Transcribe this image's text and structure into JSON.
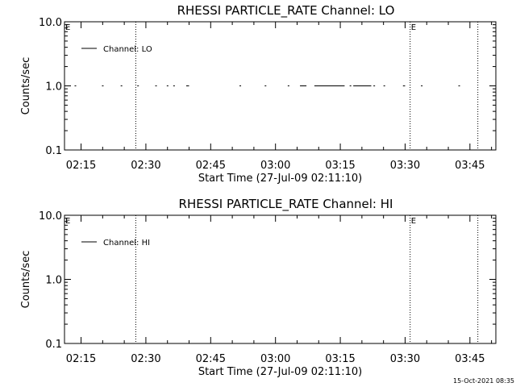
{
  "chart_data": [
    {
      "type": "line",
      "title": "RHESSI PARTICLE_RATE Channel: LO",
      "xlabel": "Start Time (27-Jul-09 02:11:10)",
      "ylabel": "Counts/sec",
      "y_scale": "log",
      "ylim": [
        0.1,
        10.0
      ],
      "y_tick_labels": [
        "0.1",
        "1.0",
        "10.0"
      ],
      "xlim": [
        "02:11:10",
        "03:51:00"
      ],
      "x_tick_labels": [
        "02:15",
        "02:30",
        "02:45",
        "03:00",
        "03:15",
        "03:30",
        "03:45"
      ],
      "legend": {
        "position": "top-left",
        "entries": [
          "Channel: LO"
        ]
      },
      "series": [
        {
          "name": "Channel: LO",
          "segments": [
            {
              "start": "02:13:30",
              "end": "02:13:45",
              "value": 1.0
            },
            {
              "start": "02:19:50",
              "end": "02:20:10",
              "value": 1.0
            },
            {
              "start": "02:24:10",
              "end": "02:24:20",
              "value": 1.0
            },
            {
              "start": "02:28:00",
              "end": "02:28:20",
              "value": 1.0
            },
            {
              "start": "02:32:10",
              "end": "02:32:30",
              "value": 1.0
            },
            {
              "start": "02:34:50",
              "end": "02:35:10",
              "value": 1.0
            },
            {
              "start": "02:36:20",
              "end": "02:36:40",
              "value": 1.0
            },
            {
              "start": "02:39:20",
              "end": "02:40:00",
              "value": 1.0
            },
            {
              "start": "02:51:40",
              "end": "02:51:50",
              "value": 1.0
            },
            {
              "start": "02:57:30",
              "end": "02:57:50",
              "value": 1.0
            },
            {
              "start": "03:02:50",
              "end": "03:03:10",
              "value": 1.0
            },
            {
              "start": "03:05:40",
              "end": "03:07:10",
              "value": 1.0
            },
            {
              "start": "03:09:00",
              "end": "03:16:00",
              "value": 1.0
            },
            {
              "start": "03:17:10",
              "end": "03:17:30",
              "value": 1.0
            },
            {
              "start": "03:18:00",
              "end": "03:22:10",
              "value": 1.0
            },
            {
              "start": "03:22:40",
              "end": "03:23:00",
              "value": 1.0
            },
            {
              "start": "03:25:00",
              "end": "03:25:20",
              "value": 1.0
            },
            {
              "start": "03:29:30",
              "end": "03:30:00",
              "value": 1.0
            },
            {
              "start": "03:33:40",
              "end": "03:34:00",
              "value": 1.0
            },
            {
              "start": "03:42:20",
              "end": "03:42:40",
              "value": 1.0
            }
          ]
        }
      ],
      "markers": [
        {
          "time": "02:27:40",
          "label": ""
        },
        {
          "time": "03:31:10",
          "label": "E"
        },
        {
          "time": "03:46:50",
          "label": ""
        }
      ],
      "corner_label": "E"
    },
    {
      "type": "line",
      "title": "RHESSI PARTICLE_RATE Channel: HI",
      "xlabel": "Start Time (27-Jul-09 02:11:10)",
      "ylabel": "Counts/sec",
      "y_scale": "log",
      "ylim": [
        0.1,
        10.0
      ],
      "y_tick_labels": [
        "0.1",
        "1.0",
        "10.0"
      ],
      "xlim": [
        "02:11:10",
        "03:51:00"
      ],
      "x_tick_labels": [
        "02:15",
        "02:30",
        "02:45",
        "03:00",
        "03:15",
        "03:30",
        "03:45"
      ],
      "legend": {
        "position": "top-left",
        "entries": [
          "Channel: HI"
        ]
      },
      "series": [
        {
          "name": "Channel: HI",
          "segments": []
        }
      ],
      "markers": [
        {
          "time": "02:27:40",
          "label": ""
        },
        {
          "time": "03:31:10",
          "label": "E"
        },
        {
          "time": "03:46:50",
          "label": ""
        }
      ],
      "corner_label": "E"
    }
  ],
  "footer": {
    "timestamp": "15-Oct-2021 08:35"
  }
}
